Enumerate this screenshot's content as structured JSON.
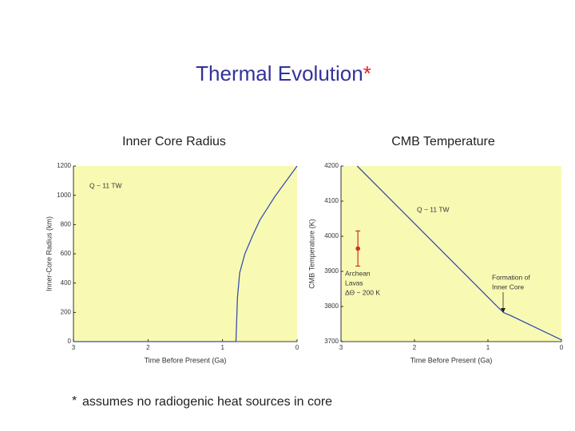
{
  "slide": {
    "title": "Thermal Evolution",
    "title_mark": "*",
    "footnote_mark": "*",
    "footnote": "assumes no radiogenic heat sources in core"
  },
  "chart_data": [
    {
      "type": "line",
      "title": "Inner Core Radius",
      "x_label": "Time Before Present  (Ga)",
      "y_label": "Inner-Core Radius  (km)",
      "x": [
        3,
        0.82,
        0.8,
        0.77,
        0.7,
        0.6,
        0.5,
        0.4,
        0.3,
        0.2,
        0.1,
        0
      ],
      "values": [
        0,
        0,
        300,
        470,
        600,
        720,
        830,
        910,
        990,
        1060,
        1130,
        1200
      ],
      "color": "#3a4fb0",
      "background": "#f8fab4",
      "xlim": [
        3,
        0
      ],
      "xticks": [
        3,
        2,
        1,
        0
      ],
      "ylim": [
        0,
        1200
      ],
      "yticks": [
        0,
        200,
        400,
        600,
        800,
        1000,
        1200
      ],
      "annotations": [
        "Q ~ 11 TW"
      ]
    },
    {
      "type": "line",
      "title": "CMB Temperature",
      "x_label": "Time Before Present  (Ga)",
      "y_label": "CMB Temperature  (K)",
      "x": [
        2.78,
        0.85,
        0.78,
        0.7,
        0
      ],
      "values": [
        4200,
        3795,
        3782,
        3775,
        3705
      ],
      "color": "#3a4fb0",
      "background": "#f8fab4",
      "xlim": [
        3,
        0
      ],
      "xticks": [
        3,
        2,
        1,
        0
      ],
      "ylim": [
        3700,
        4200
      ],
      "yticks": [
        3700,
        3800,
        3900,
        4000,
        4100,
        4200
      ],
      "points": [
        {
          "x": 2.77,
          "value": 3965,
          "error": 50
        }
      ],
      "point_color": "#d03020",
      "annotations": [
        "Q ~ 11 TW",
        "Archean",
        "Lavas",
        "ΔΘ ~ 200 K",
        "Formation of",
        "Inner Core"
      ]
    }
  ]
}
